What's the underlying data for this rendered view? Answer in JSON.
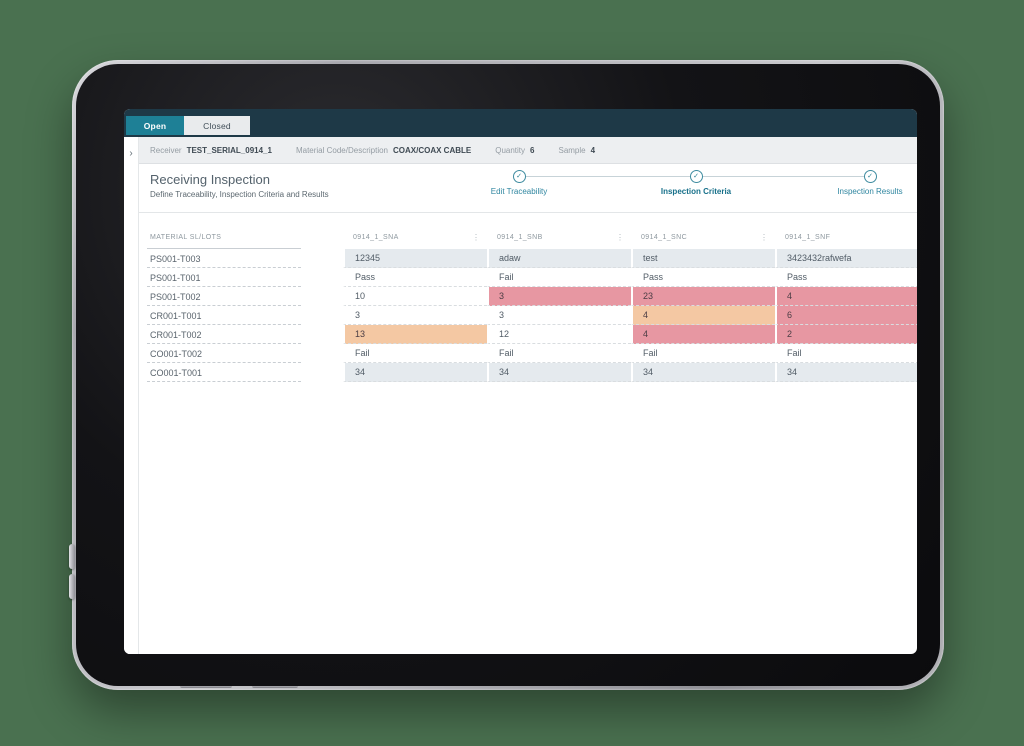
{
  "tabs": [
    {
      "label": "Open",
      "active": true
    },
    {
      "label": "Closed",
      "active": false
    }
  ],
  "sidebar": {
    "expand_icon": "›"
  },
  "breadcrumb": {
    "items": [
      {
        "label": "Receiver",
        "value": "TEST_SERIAL_0914_1"
      },
      {
        "label": "Material Code/Description",
        "value": "COAX/COAX CABLE"
      },
      {
        "label": "Quantity",
        "value": "6"
      },
      {
        "label": "Sample",
        "value": "4"
      }
    ]
  },
  "page": {
    "title": "Receiving Inspection",
    "subtitle": "Define Traceability, Inspection Criteria and Results"
  },
  "stepper": {
    "steps": [
      {
        "label": "Edit Traceability",
        "icon": "✓",
        "active": false
      },
      {
        "label": "Inspection Criteria",
        "icon": "✓",
        "active": true
      },
      {
        "label": "Inspection Results",
        "icon": "✓",
        "active": false
      }
    ]
  },
  "table": {
    "first_col_header": "MATERIAL SL/LOTS",
    "columns": [
      {
        "label": "0914_1_SNA",
        "menu_icon": "⋮"
      },
      {
        "label": "0914_1_SNB",
        "menu_icon": "⋮"
      },
      {
        "label": "0914_1_SNC",
        "menu_icon": "⋮"
      },
      {
        "label": "0914_1_SNF",
        "menu_icon": ""
      }
    ],
    "rows": [
      {
        "lot": "PS001-T003",
        "values": [
          "12345",
          "adaw",
          "test",
          "3423432rafwefa"
        ],
        "states": [
          "filled",
          "filled",
          "filled",
          "filled"
        ]
      },
      {
        "lot": "PS001-T001",
        "values": [
          "Pass",
          "Fail",
          "Pass",
          "Pass"
        ],
        "states": [
          "default",
          "default",
          "default",
          "default"
        ]
      },
      {
        "lot": "PS001-T002",
        "values": [
          "10",
          "3",
          "23",
          "4"
        ],
        "states": [
          "default",
          "fail",
          "fail",
          "fail"
        ]
      },
      {
        "lot": "CR001-T001",
        "values": [
          "3",
          "3",
          "4",
          "6"
        ],
        "states": [
          "default",
          "default",
          "warn",
          "fail"
        ]
      },
      {
        "lot": "CR001-T002",
        "values": [
          "13",
          "12",
          "4",
          "2"
        ],
        "states": [
          "warn",
          "default",
          "fail",
          "fail"
        ]
      },
      {
        "lot": "CO001-T002",
        "values": [
          "Fail",
          "Fail",
          "Fail",
          "Fail"
        ],
        "states": [
          "default",
          "default",
          "default",
          "default"
        ]
      },
      {
        "lot": "CO001-T001",
        "values": [
          "34",
          "34",
          "34",
          "34"
        ],
        "states": [
          "filled",
          "filled",
          "filled",
          "filled"
        ]
      }
    ]
  },
  "colors": {
    "accent_teal": "#1e8096",
    "header_navy": "#1e3947",
    "cell_fail_red": "#e797a2",
    "cell_warn_orange": "#f4c8a3",
    "cell_readonly_gray": "#e5eaee",
    "device_background_green": "#4a7150"
  }
}
